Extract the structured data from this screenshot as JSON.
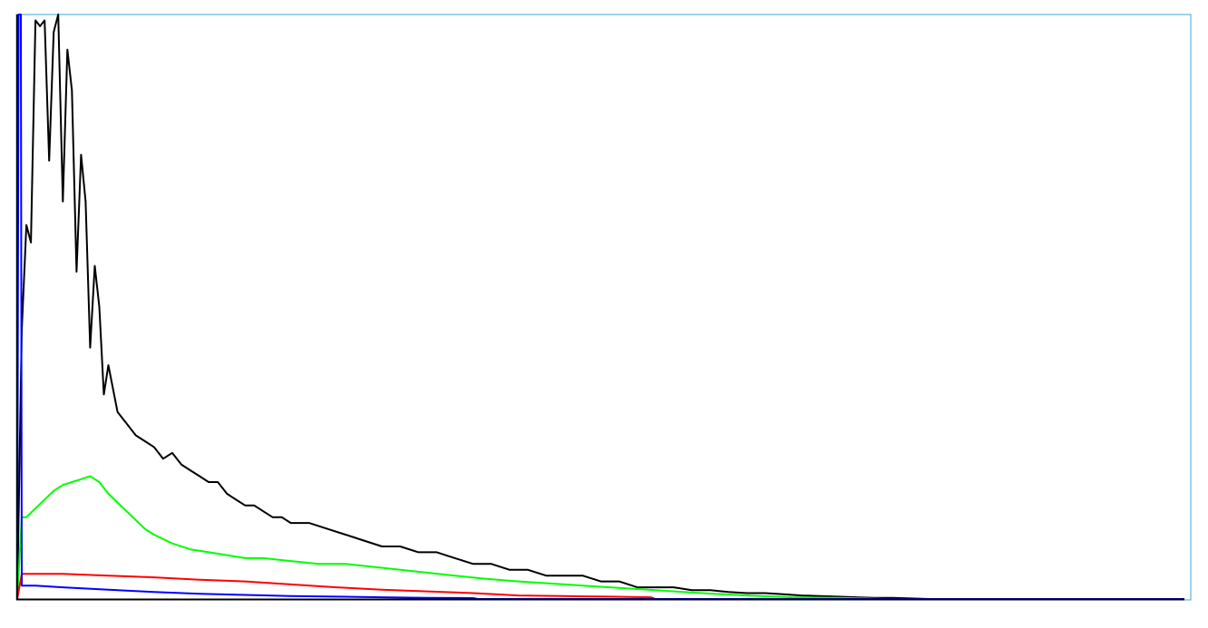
{
  "chart_data": {
    "type": "line",
    "title": "",
    "xlabel": "",
    "ylabel": "",
    "xlim": [
      0,
      256
    ],
    "ylim": [
      0,
      100
    ],
    "grid": false,
    "legend": "none",
    "frame_color": "#3aa6d8",
    "series": [
      {
        "color": "#000000",
        "x": [
          0,
          1,
          2,
          3,
          4,
          5,
          6,
          7,
          8,
          9,
          10,
          11,
          12,
          13,
          14,
          15,
          16,
          17,
          18,
          19,
          20,
          22,
          24,
          26,
          28,
          30,
          32,
          34,
          36,
          38,
          40,
          42,
          44,
          46,
          48,
          50,
          52,
          54,
          56,
          58,
          60,
          64,
          68,
          72,
          76,
          80,
          84,
          88,
          92,
          96,
          100,
          104,
          108,
          112,
          116,
          120,
          124,
          128,
          132,
          136,
          140,
          144,
          148,
          152,
          156,
          160,
          164,
          168,
          172,
          176,
          180,
          184,
          188,
          192,
          196,
          200,
          210,
          220,
          230,
          240,
          256
        ],
        "y": [
          0,
          46,
          64,
          61,
          99,
          98,
          99,
          75,
          97,
          100,
          68,
          94,
          87,
          56,
          76,
          68,
          43,
          57,
          50,
          35,
          40,
          32,
          30,
          28,
          27,
          26,
          24,
          25,
          23,
          22,
          21,
          20,
          20,
          18,
          17,
          16,
          16,
          15,
          14,
          14,
          13,
          13,
          12,
          11,
          10,
          9,
          9,
          8,
          8,
          7,
          6,
          6,
          5,
          5,
          4,
          4,
          4,
          3,
          3,
          2,
          2,
          2,
          1.5,
          1.5,
          1.2,
          1,
          1,
          0.8,
          0.6,
          0.5,
          0.4,
          0.3,
          0.2,
          0.2,
          0.1,
          0,
          0,
          0,
          0,
          0,
          0
        ]
      },
      {
        "color": "#00ff00",
        "x": [
          0,
          1,
          2,
          4,
          6,
          8,
          10,
          12,
          14,
          16,
          18,
          20,
          22,
          24,
          26,
          28,
          30,
          34,
          38,
          42,
          46,
          50,
          54,
          60,
          66,
          72,
          78,
          84,
          90,
          96,
          102,
          110,
          120,
          130,
          140,
          150,
          160,
          170,
          180,
          186,
          190,
          256
        ],
        "y": [
          0,
          14,
          14,
          15.5,
          17,
          18.5,
          19.5,
          20,
          20.5,
          21,
          20,
          18,
          16.5,
          15,
          13.5,
          12,
          11,
          9.5,
          8.5,
          8,
          7.5,
          7,
          7,
          6.5,
          6,
          6,
          5.5,
          5,
          4.5,
          4,
          3.5,
          3,
          2.5,
          2,
          1.5,
          1,
          0.6,
          0.3,
          0.2,
          0.1,
          0,
          0
        ]
      },
      {
        "color": "#ff0000",
        "x": [
          0,
          1,
          2,
          10,
          20,
          30,
          40,
          50,
          60,
          70,
          80,
          90,
          100,
          110,
          120,
          130,
          139,
          140,
          256
        ],
        "y": [
          0,
          4.3,
          4.3,
          4.3,
          4,
          3.7,
          3.3,
          3,
          2.5,
          2,
          1.6,
          1.3,
          1,
          0.6,
          0.5,
          0.4,
          0.3,
          0,
          0
        ]
      },
      {
        "color": "#0000ff",
        "x": [
          0,
          0.3,
          0.8,
          1,
          2,
          4,
          10,
          20,
          30,
          40,
          50,
          60,
          70,
          80,
          90,
          100,
          101,
          256
        ],
        "y": [
          0,
          100,
          100,
          2.3,
          2.3,
          2.3,
          2,
          1.6,
          1.2,
          0.9,
          0.7,
          0.5,
          0.4,
          0.3,
          0.2,
          0.15,
          0,
          0
        ]
      }
    ]
  }
}
